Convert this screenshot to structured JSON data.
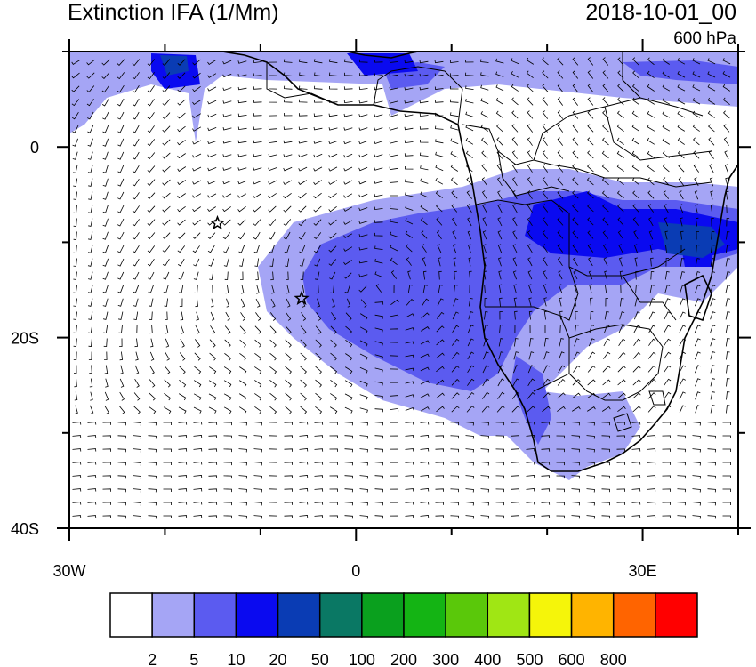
{
  "title_left": "Extinction IFA (1/Mm)",
  "title_right": "2018-10-01_00",
  "level": "600 hPa",
  "map": {
    "lon_range": [
      -30,
      40
    ],
    "lat_range": [
      -40,
      10
    ],
    "x_ticks": [
      {
        "value": -30,
        "label": "30W"
      },
      {
        "value": 0,
        "label": "0"
      },
      {
        "value": 30,
        "label": "30E"
      }
    ],
    "y_ticks": [
      {
        "value": 0,
        "label": "0"
      },
      {
        "value": -20,
        "label": "20S"
      },
      {
        "value": -40,
        "label": "40S"
      }
    ],
    "markers": [
      {
        "name": "star",
        "lon": -14.5,
        "lat": -8
      },
      {
        "name": "star",
        "lon": -5.7,
        "lat": -15.9
      }
    ]
  },
  "colorbar": {
    "colors": [
      "#ffffff",
      "#a5a5f5",
      "#5b5bf0",
      "#0a0af0",
      "#0a3cb4",
      "#0a7864",
      "#0aa01e",
      "#14b414",
      "#5ac80a",
      "#a0e614",
      "#f5f50a",
      "#ffb400",
      "#ff6400",
      "#ff0000"
    ],
    "labels": [
      "2",
      "5",
      "10",
      "20",
      "50",
      "100",
      "200",
      "300",
      "400",
      "500",
      "600",
      "800"
    ]
  },
  "fill_colors": {
    "low": "#a5a5f5",
    "mid": "#5b5bf0",
    "high": "#0a0af0",
    "vhigh": "#0a3cb4"
  }
}
